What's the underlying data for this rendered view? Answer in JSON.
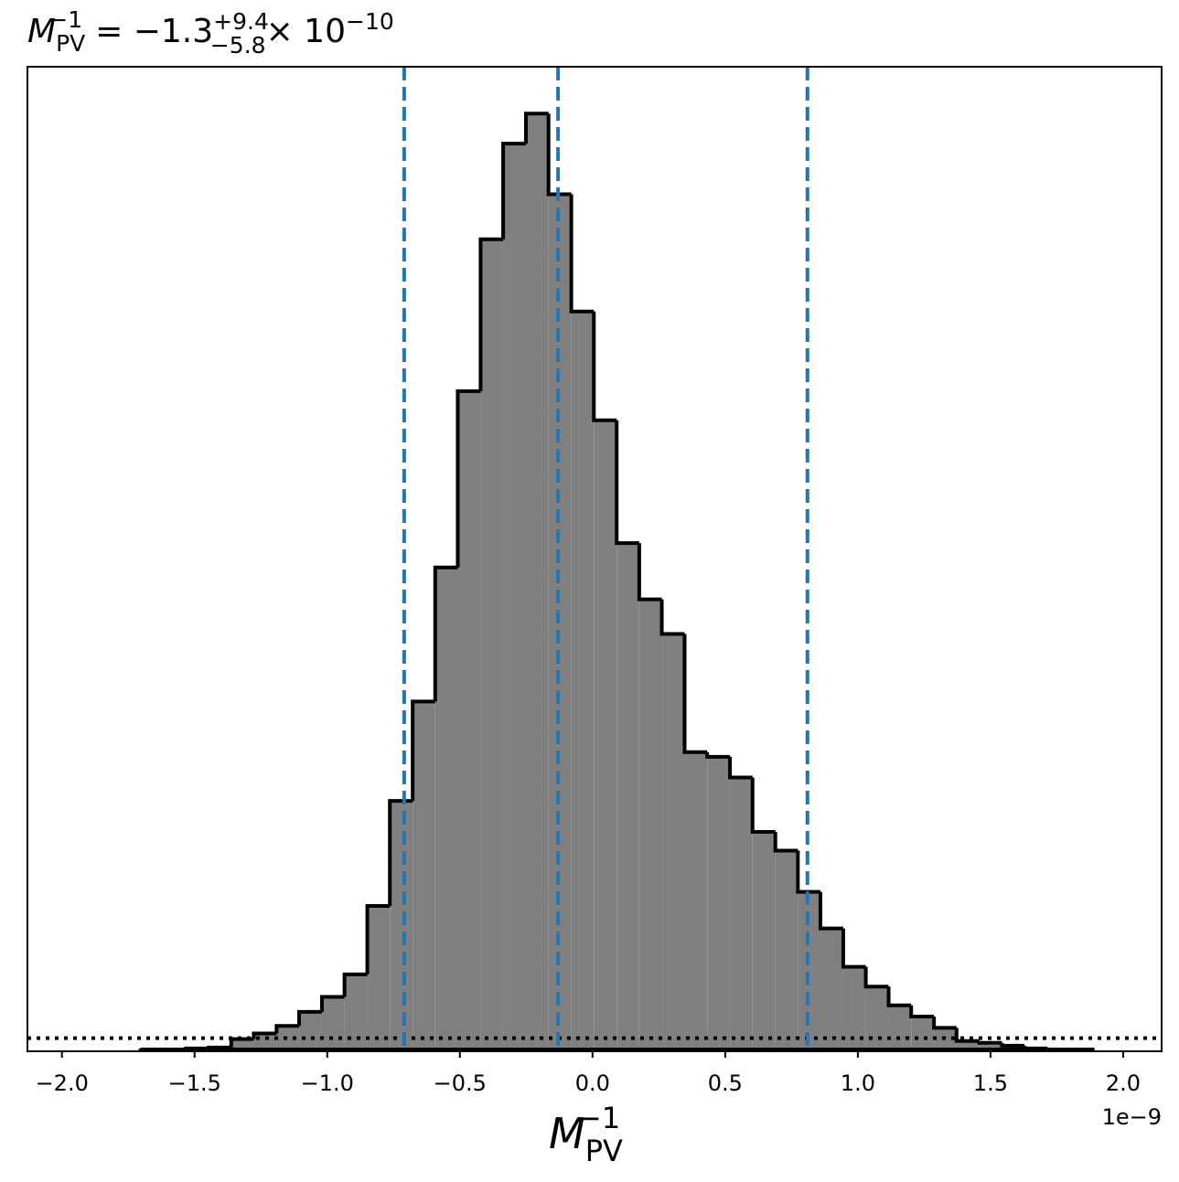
{
  "chart_data": {
    "type": "histogram",
    "title": {
      "base": "M",
      "sub": "PV",
      "sup": "−1",
      "value": "= −1.3",
      "plus": "+9.4",
      "minus": "−5.8",
      "times": "× 10",
      "power": "−10"
    },
    "xlabel": {
      "base": "M",
      "sub": "PV",
      "sup": "−1"
    },
    "x_offset_label": "1e−9",
    "bins": [
      -1.704,
      -1.618,
      -1.533,
      -1.447,
      -1.362,
      -1.277,
      -1.191,
      -1.106,
      -1.02,
      -0.935,
      -0.849,
      -0.764,
      -0.678,
      -0.593,
      -0.508,
      -0.422,
      -0.337,
      -0.251,
      -0.166,
      -0.08,
      0.005,
      0.091,
      0.176,
      0.261,
      0.347,
      0.432,
      0.518,
      0.603,
      0.689,
      0.774,
      0.859,
      0.945,
      1.03,
      1.116,
      1.201,
      1.287,
      1.372,
      1.458,
      1.543,
      1.628,
      1.714,
      1.799,
      1.885
    ],
    "values": [
      0.001,
      0.001,
      0.003,
      0.004,
      0.013,
      0.019,
      0.027,
      0.042,
      0.058,
      0.082,
      0.155,
      0.267,
      0.373,
      0.516,
      0.704,
      0.866,
      0.968,
      1.0,
      0.914,
      0.789,
      0.673,
      0.542,
      0.482,
      0.445,
      0.319,
      0.314,
      0.292,
      0.234,
      0.214,
      0.17,
      0.131,
      0.09,
      0.069,
      0.049,
      0.037,
      0.025,
      0.011,
      0.009,
      0.006,
      0.003,
      0.002,
      0.002
    ],
    "color": "#808080",
    "edge_color": "#000000",
    "quantiles": [
      -0.71,
      -0.13,
      0.81
    ],
    "quantile_color": "#1f77b4",
    "reference_level": 0.014,
    "xlim": [
      -2.13,
      2.145
    ],
    "ylim": [
      0,
      1.05
    ],
    "xticks": [
      {
        "value": -2,
        "label": "−2.0"
      },
      {
        "value": -1.5,
        "label": "−1.5"
      },
      {
        "value": -1,
        "label": "−1.0"
      },
      {
        "value": -0.5,
        "label": "−0.5"
      },
      {
        "value": 0,
        "label": "0.0"
      },
      {
        "value": 0.5,
        "label": "0.5"
      },
      {
        "value": 1,
        "label": "1.0"
      },
      {
        "value": 1.5,
        "label": "1.5"
      },
      {
        "value": 2,
        "label": "2.0"
      }
    ]
  }
}
